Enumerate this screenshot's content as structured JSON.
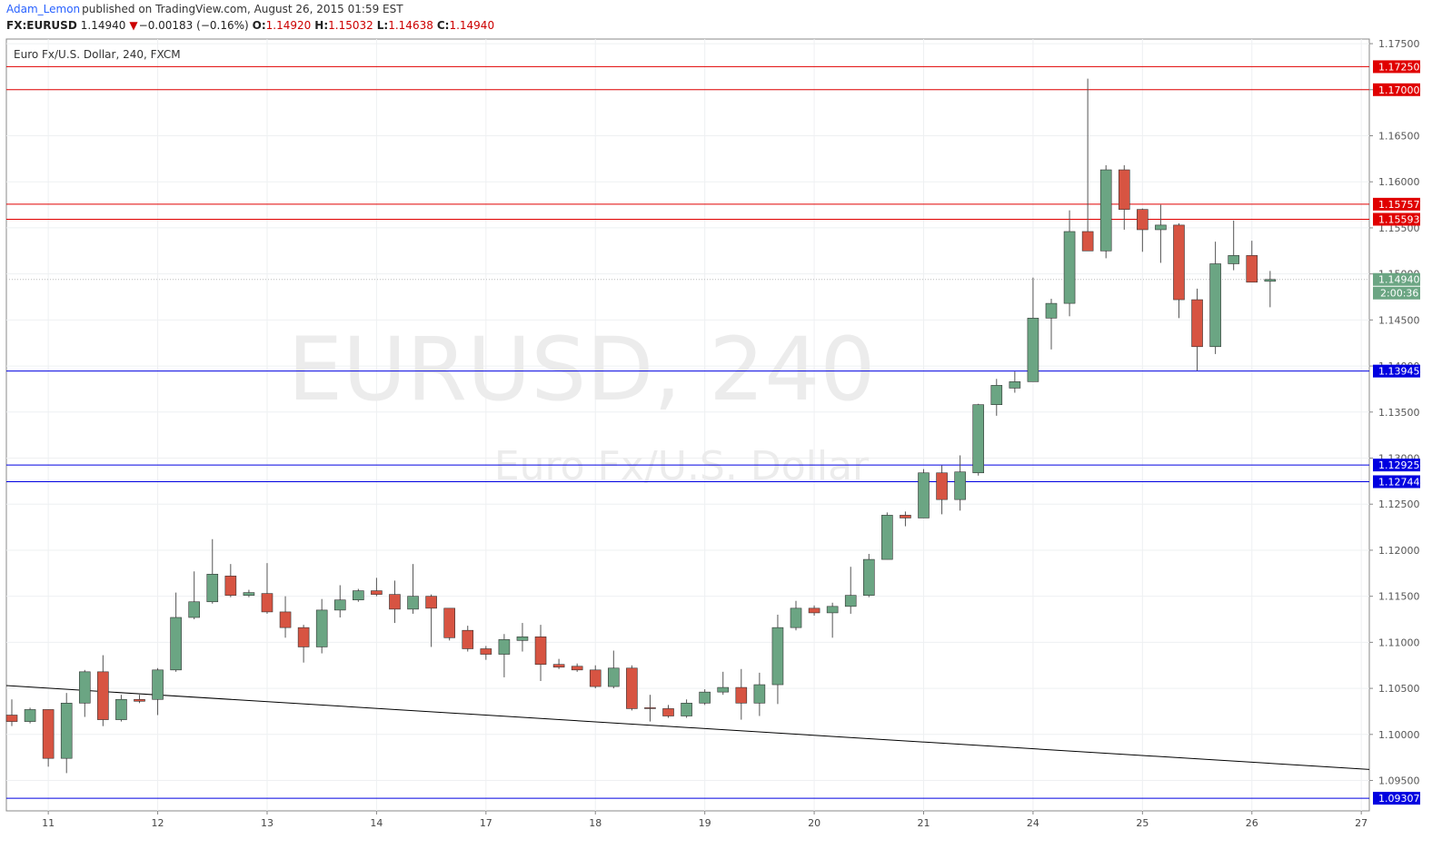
{
  "header": {
    "author": "Adam_Lemon",
    "published": "published on TradingView.com, August 26, 2015 01:59 EST",
    "symbol": "FX:EURUSD",
    "last": "1.14940",
    "arrow": "▼",
    "change": "−0.00183 (−0.16%)",
    "o_label": "O:",
    "o": "1.14920",
    "h_label": "H:",
    "h": "1.15032",
    "l_label": "L:",
    "l": "1.14638",
    "c_label": "C:",
    "c": "1.14940"
  },
  "chart_data": {
    "type": "candlestick",
    "title": "Euro Fx/U.S. Dollar, 240, FXCM",
    "watermark": "EURUSD, 240",
    "watermark_sub": "Euro Fx/U.S. Dollar",
    "up_color": "#6ba583",
    "down_color": "#d75442",
    "categories": [
      null,
      null,
      "11",
      null,
      null,
      null,
      null,
      null,
      "12",
      null,
      null,
      null,
      null,
      null,
      "13",
      null,
      null,
      null,
      null,
      null,
      "14",
      null,
      null,
      null,
      null,
      null,
      "17",
      null,
      null,
      null,
      null,
      null,
      "18",
      null,
      null,
      null,
      null,
      null,
      "19",
      null,
      null,
      null,
      null,
      null,
      "20",
      null,
      null,
      null,
      null,
      null,
      "21",
      null,
      null,
      null,
      null,
      null,
      "24",
      null,
      null,
      null,
      null,
      null,
      "25",
      null,
      null,
      null,
      null,
      null,
      "26",
      null,
      null,
      null,
      null,
      null,
      "27"
    ],
    "open": [
      1.1021,
      1.1014,
      1.1027,
      1.0974,
      1.1034,
      1.1068,
      1.1016,
      1.1038,
      1.1038,
      1.107,
      1.1127,
      1.1144,
      1.1172,
      1.1151,
      1.1153,
      1.1133,
      1.1116,
      1.1095,
      1.1135,
      1.1146,
      1.1156,
      1.1152,
      1.1136,
      1.115,
      1.1137,
      1.1113,
      1.1093,
      1.1087,
      1.1102,
      1.1106,
      1.1076,
      1.1074,
      1.107,
      1.1052,
      1.1072,
      1.1029,
      1.1028,
      1.102,
      1.1034,
      1.1046,
      1.1051,
      1.1034,
      1.1054,
      1.1116,
      1.1137,
      1.1132,
      1.1139,
      1.1151,
      1.119,
      1.1238,
      1.1235,
      1.1284,
      1.1255,
      1.1284,
      1.1358,
      1.1376,
      1.1383,
      1.1452,
      1.1468,
      1.1546,
      1.1525,
      1.1613,
      1.157,
      1.1548,
      1.1553,
      1.1472,
      1.1421,
      1.1511,
      1.152,
      1.1492,
      null,
      null,
      null,
      null,
      null
    ],
    "high": [
      1.1038,
      1.1029,
      1.1027,
      1.1045,
      1.107,
      1.1086,
      1.1043,
      1.1043,
      1.1072,
      1.1154,
      1.1177,
      1.1212,
      1.1185,
      1.1157,
      1.1186,
      1.115,
      1.1119,
      1.1147,
      1.1162,
      1.1158,
      1.117,
      1.1167,
      1.1185,
      1.1152,
      1.1137,
      1.1118,
      1.1096,
      1.1109,
      1.1121,
      1.1119,
      1.1082,
      1.1077,
      1.1075,
      1.1091,
      1.1075,
      1.1043,
      1.1032,
      1.1038,
      1.1049,
      1.1068,
      1.1071,
      1.1067,
      1.113,
      1.1145,
      1.114,
      1.1143,
      1.1182,
      1.1196,
      1.1241,
      1.1242,
      1.1288,
      1.1292,
      1.1303,
      1.1359,
      1.1386,
      1.1394,
      1.1496,
      1.1473,
      1.1569,
      1.1712,
      1.1618,
      1.1618,
      1.1571,
      1.1575,
      1.1555,
      1.1484,
      1.1535,
      1.1558,
      1.1536,
      1.15032,
      null,
      null,
      null,
      null,
      null
    ],
    "low": [
      1.1009,
      1.1012,
      1.0965,
      1.0958,
      1.1019,
      1.1009,
      1.1014,
      1.1034,
      1.1021,
      1.1068,
      1.1125,
      1.1142,
      1.1149,
      1.1149,
      1.1131,
      1.1105,
      1.1078,
      1.1088,
      1.1127,
      1.1144,
      1.115,
      1.1121,
      1.1131,
      1.1095,
      1.1102,
      1.109,
      1.1081,
      1.1062,
      1.109,
      1.1058,
      1.1071,
      1.1068,
      1.105,
      1.105,
      1.1026,
      1.1014,
      1.1018,
      1.1018,
      1.1032,
      1.1043,
      1.1016,
      1.102,
      1.1033,
      1.1113,
      1.1129,
      1.1105,
      1.1131,
      1.1149,
      1.119,
      1.1226,
      1.1235,
      1.1239,
      1.1243,
      1.1281,
      1.1346,
      1.1371,
      1.1383,
      1.1418,
      1.1454,
      1.1525,
      1.1517,
      1.1548,
      1.1524,
      1.1512,
      1.1452,
      1.1395,
      1.1413,
      1.1504,
      1.1491,
      1.14638,
      null,
      null,
      null,
      null,
      null
    ],
    "close": [
      1.1014,
      1.1027,
      1.0974,
      1.1034,
      1.1068,
      1.1016,
      1.1038,
      1.1036,
      1.107,
      1.1127,
      1.1144,
      1.1174,
      1.1151,
      1.1154,
      1.1133,
      1.1116,
      1.1095,
      1.1135,
      1.1146,
      1.1156,
      1.1152,
      1.1136,
      1.115,
      1.1137,
      1.1105,
      1.1093,
      1.1087,
      1.1103,
      1.1106,
      1.1076,
      1.1073,
      1.107,
      1.1052,
      1.1072,
      1.1028,
      1.1028,
      1.102,
      1.1034,
      1.1046,
      1.1051,
      1.1034,
      1.1054,
      1.1116,
      1.1137,
      1.1132,
      1.1139,
      1.1151,
      1.119,
      1.1238,
      1.1235,
      1.1284,
      1.1255,
      1.1285,
      1.1358,
      1.1379,
      1.1383,
      1.1452,
      1.1468,
      1.1546,
      1.1525,
      1.1613,
      1.157,
      1.1548,
      1.1553,
      1.1472,
      1.1421,
      1.1511,
      1.152,
      1.1491,
      1.1494,
      null,
      null,
      null,
      null,
      null
    ],
    "ylim": [
      1.0917,
      1.1755
    ],
    "yticks": [
      {
        "value": 1.095,
        "label": "1.09500"
      },
      {
        "value": 1.1,
        "label": "1.10000"
      },
      {
        "value": 1.105,
        "label": "1.10500"
      },
      {
        "value": 1.11,
        "label": "1.11000"
      },
      {
        "value": 1.115,
        "label": "1.11500"
      },
      {
        "value": 1.12,
        "label": "1.12000"
      },
      {
        "value": 1.125,
        "label": "1.12500"
      },
      {
        "value": 1.13,
        "label": "1.13000"
      },
      {
        "value": 1.135,
        "label": "1.13500"
      },
      {
        "value": 1.14,
        "label": "1.14000"
      },
      {
        "value": 1.145,
        "label": "1.14500"
      },
      {
        "value": 1.15,
        "label": "1.15000"
      },
      {
        "value": 1.155,
        "label": "1.15500"
      },
      {
        "value": 1.16,
        "label": "1.16000"
      },
      {
        "value": 1.165,
        "label": "1.16500"
      },
      {
        "value": 1.17,
        "label": "1.17000"
      },
      {
        "value": 1.175,
        "label": "1.17500"
      }
    ],
    "levels": [
      {
        "value": 1.1725,
        "label": "1.17250",
        "color": "#e00000"
      },
      {
        "value": 1.17,
        "label": "1.17000",
        "color": "#e00000"
      },
      {
        "value": 1.15757,
        "label": "1.15757",
        "color": "#e00000"
      },
      {
        "value": 1.15593,
        "label": "1.15593",
        "color": "#e00000"
      },
      {
        "value": 1.13945,
        "label": "1.13945",
        "color": "#0000e0"
      },
      {
        "value": 1.12925,
        "label": "1.12925",
        "color": "#0000e0"
      },
      {
        "value": 1.12744,
        "label": "1.12744",
        "color": "#0000e0"
      },
      {
        "value": 1.09307,
        "label": "1.09307",
        "color": "#0000e0"
      }
    ],
    "price_line": {
      "value": 1.1494,
      "label": "1.14940",
      "timer": "2:00:36",
      "color": "#6ba583"
    },
    "trend_line": {
      "start": 1.1053,
      "end": 1.0962,
      "color": "#000000"
    },
    "grid": true
  }
}
